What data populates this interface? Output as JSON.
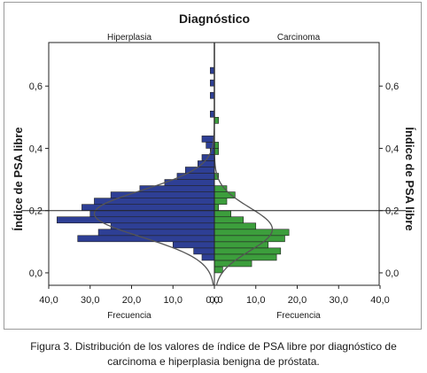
{
  "chart_data": {
    "type": "bar",
    "orientation": "horizontal",
    "layout": "population-pyramid",
    "title": "Diagnóstico",
    "panels": [
      "Hiperplasia",
      "Carcinoma"
    ],
    "xlabel": "Frecuencia",
    "ylabel": "Índice de PSA libre",
    "xlim": [
      0,
      40
    ],
    "ylim": [
      -0.04,
      0.74
    ],
    "x_ticks": [
      "40,0",
      "30,0",
      "20,0",
      "10,0",
      "0,0",
      "0,0",
      "10,0",
      "20,0",
      "30,0",
      "40,0"
    ],
    "y_ticks": [
      {
        "value": 0.0,
        "label": "0,0"
      },
      {
        "value": 0.2,
        "label": "0,2"
      },
      {
        "value": 0.4,
        "label": "0,4"
      },
      {
        "value": 0.6,
        "label": "0,6"
      }
    ],
    "bin_width": 0.02,
    "reference_line_y": 0.2,
    "grid": false,
    "series": [
      {
        "name": "Hiperplasia",
        "color": "#2e3f95",
        "bins": [
          {
            "y": 0.05,
            "count": 3
          },
          {
            "y": 0.07,
            "count": 5
          },
          {
            "y": 0.09,
            "count": 10
          },
          {
            "y": 0.11,
            "count": 33
          },
          {
            "y": 0.13,
            "count": 28
          },
          {
            "y": 0.15,
            "count": 25
          },
          {
            "y": 0.17,
            "count": 38
          },
          {
            "y": 0.19,
            "count": 30
          },
          {
            "y": 0.21,
            "count": 32
          },
          {
            "y": 0.23,
            "count": 29
          },
          {
            "y": 0.25,
            "count": 25
          },
          {
            "y": 0.27,
            "count": 18
          },
          {
            "y": 0.29,
            "count": 12
          },
          {
            "y": 0.31,
            "count": 9
          },
          {
            "y": 0.33,
            "count": 7
          },
          {
            "y": 0.35,
            "count": 4
          },
          {
            "y": 0.37,
            "count": 3
          },
          {
            "y": 0.39,
            "count": 1
          },
          {
            "y": 0.41,
            "count": 2
          },
          {
            "y": 0.43,
            "count": 3
          },
          {
            "y": 0.51,
            "count": 1
          },
          {
            "y": 0.57,
            "count": 1
          },
          {
            "y": 0.61,
            "count": 1
          },
          {
            "y": 0.65,
            "count": 1
          }
        ]
      },
      {
        "name": "Carcinoma",
        "color": "#3c9e3c",
        "bins": [
          {
            "y": 0.01,
            "count": 2
          },
          {
            "y": 0.03,
            "count": 9
          },
          {
            "y": 0.05,
            "count": 15
          },
          {
            "y": 0.07,
            "count": 16
          },
          {
            "y": 0.09,
            "count": 13
          },
          {
            "y": 0.11,
            "count": 17
          },
          {
            "y": 0.13,
            "count": 18
          },
          {
            "y": 0.15,
            "count": 10
          },
          {
            "y": 0.17,
            "count": 7
          },
          {
            "y": 0.19,
            "count": 4
          },
          {
            "y": 0.21,
            "count": 1
          },
          {
            "y": 0.23,
            "count": 3
          },
          {
            "y": 0.25,
            "count": 5
          },
          {
            "y": 0.27,
            "count": 3
          },
          {
            "y": 0.31,
            "count": 1
          },
          {
            "y": 0.39,
            "count": 1
          },
          {
            "y": 0.41,
            "count": 1
          },
          {
            "y": 0.49,
            "count": 1
          }
        ]
      }
    ],
    "normal_curves": [
      {
        "name": "Hiperplasia",
        "mean": 0.19,
        "sd": 0.075,
        "peak": 29
      },
      {
        "name": "Carcinoma",
        "mean": 0.14,
        "sd": 0.07,
        "peak": 14
      }
    ]
  },
  "caption": {
    "line1": "Figura 3. Distribución de los valores de índice de PSA libre por diagnóstico de",
    "line2": "carcinoma e hiperplasia benigna de próstata."
  }
}
